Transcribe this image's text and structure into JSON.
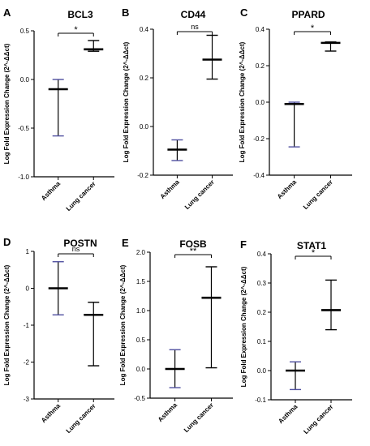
{
  "chart_data": [
    {
      "type": "scatter",
      "panel": "A",
      "title": "BCL3",
      "ylabel": "Log Fold Expression Change (2^-ΔΔct)",
      "categories": [
        "Asthma",
        "Lung cancer"
      ],
      "ylim": [
        -1.0,
        0.5
      ],
      "yticks": [
        "-1.0",
        "-0.5",
        "0.0",
        "0.5"
      ],
      "yticks_values": [
        -1.0,
        -0.5,
        0.0,
        0.5
      ],
      "series": [
        {
          "category": "Asthma",
          "mean": -0.1,
          "min": -0.58,
          "max": 0.0,
          "color": "#5050a0"
        },
        {
          "category": "Lung cancer",
          "mean": 0.31,
          "min": 0.29,
          "max": 0.4,
          "color": "#000000"
        }
      ],
      "significance": "*"
    },
    {
      "type": "scatter",
      "panel": "B",
      "title": "CD44",
      "ylabel": "Log Fold Expression Change (2^-ΔΔct)",
      "categories": [
        "Asthma",
        "Lung cancer"
      ],
      "ylim": [
        -0.2,
        0.4
      ],
      "yticks": [
        "-0.2",
        "0.0",
        "0.2",
        "0.4"
      ],
      "yticks_values": [
        -0.2,
        0.0,
        0.2,
        0.4
      ],
      "series": [
        {
          "category": "Asthma",
          "mean": -0.095,
          "min": -0.14,
          "max": -0.055,
          "color": "#5050a0"
        },
        {
          "category": "Lung cancer",
          "mean": 0.275,
          "min": 0.195,
          "max": 0.375,
          "color": "#000000"
        }
      ],
      "significance": "ns"
    },
    {
      "type": "scatter",
      "panel": "C",
      "title": "PPARD",
      "ylabel": "Log Fold Expression Change (2^-ΔΔct)",
      "categories": [
        "Asthma",
        "Lung cancer"
      ],
      "ylim": [
        -0.4,
        0.4
      ],
      "yticks": [
        "-0.4",
        "-0.2",
        "0.0",
        "0.2",
        "0.4"
      ],
      "yticks_values": [
        -0.4,
        -0.2,
        0.0,
        0.2,
        0.4
      ],
      "series": [
        {
          "category": "Asthma",
          "mean": -0.01,
          "min": -0.245,
          "max": 0.0,
          "color": "#5050a0"
        },
        {
          "category": "Lung cancer",
          "mean": 0.325,
          "min": 0.28,
          "max": 0.33,
          "color": "#000000"
        }
      ],
      "significance": "*"
    },
    {
      "type": "scatter",
      "panel": "D",
      "title": "POSTN",
      "ylabel": "Log Fold Expression Change (2^-ΔΔct)",
      "categories": [
        "Asthma",
        "Lung cancer"
      ],
      "ylim": [
        -3,
        1
      ],
      "yticks": [
        "-3",
        "-2",
        "-1",
        "0",
        "1"
      ],
      "yticks_values": [
        -3,
        -2,
        -1,
        0,
        1
      ],
      "series": [
        {
          "category": "Asthma",
          "mean": 0.0,
          "min": -0.72,
          "max": 0.72,
          "color": "#5050a0"
        },
        {
          "category": "Lung cancer",
          "mean": -0.72,
          "min": -2.1,
          "max": -0.38,
          "color": "#000000"
        }
      ],
      "significance": "ns"
    },
    {
      "type": "scatter",
      "panel": "E",
      "title": "FOSB",
      "ylabel": "Log Fold Expression Change (2^-ΔΔct)",
      "categories": [
        "Asthma",
        "Lung cancer"
      ],
      "ylim": [
        -0.5,
        2.0
      ],
      "yticks": [
        "-0.5",
        "0.0",
        "0.5",
        "1.0",
        "1.5",
        "2.0"
      ],
      "yticks_values": [
        -0.5,
        0.0,
        0.5,
        1.0,
        1.5,
        2.0
      ],
      "series": [
        {
          "category": "Asthma",
          "mean": 0.0,
          "min": -0.32,
          "max": 0.33,
          "color": "#5050a0"
        },
        {
          "category": "Lung cancer",
          "mean": 1.22,
          "min": 0.02,
          "max": 1.75,
          "color": "#000000"
        }
      ],
      "significance": "**"
    },
    {
      "type": "scatter",
      "panel": "F",
      "title": "STAT1",
      "ylabel": "Log Fold Expression Change (2^-ΔΔct)",
      "categories": [
        "Asthma",
        "Lung cancer"
      ],
      "ylim": [
        -0.1,
        0.4
      ],
      "yticks": [
        "-0.1",
        "0.0",
        "0.1",
        "0.2",
        "0.3",
        "0.4"
      ],
      "yticks_values": [
        -0.1,
        0.0,
        0.1,
        0.2,
        0.3,
        0.4
      ],
      "series": [
        {
          "category": "Asthma",
          "mean": 0.0,
          "min": -0.065,
          "max": 0.03,
          "color": "#5050a0"
        },
        {
          "category": "Lung cancer",
          "mean": 0.207,
          "min": 0.14,
          "max": 0.31,
          "color": "#000000"
        }
      ],
      "significance": "*"
    }
  ]
}
